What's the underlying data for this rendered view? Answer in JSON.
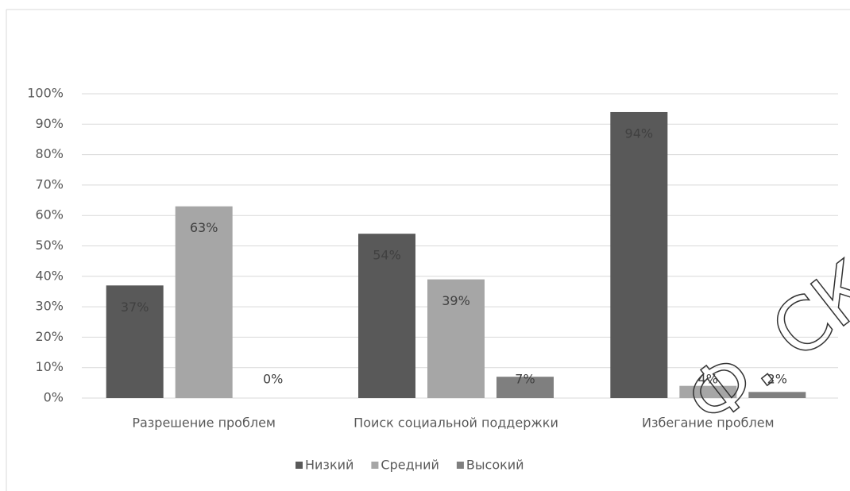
{
  "chart_data": {
    "type": "bar",
    "categories": [
      "Разрешение проблем",
      "Поиск социальной поддержки",
      "Избегание проблем"
    ],
    "series": [
      {
        "name": "Низкий",
        "color": "#595959",
        "values": [
          37,
          54,
          94
        ],
        "value_labels": [
          "37%",
          "54%",
          "94%"
        ]
      },
      {
        "name": "Средний",
        "color": "#a6a6a6",
        "values": [
          63,
          39,
          4
        ],
        "value_labels": [
          "63%",
          "39%",
          "4%"
        ]
      },
      {
        "name": "Высокий",
        "color": "#7f7f7f",
        "values": [
          0,
          7,
          2
        ],
        "value_labels": [
          "0%",
          "7%",
          "2%"
        ]
      }
    ],
    "ylim": [
      0,
      100
    ],
    "yticks": [
      {
        "value": 0,
        "label": "0%"
      },
      {
        "value": 10,
        "label": "10%"
      },
      {
        "value": 20,
        "label": "20%"
      },
      {
        "value": 30,
        "label": "30%"
      },
      {
        "value": 40,
        "label": "40%"
      },
      {
        "value": 50,
        "label": "50%"
      },
      {
        "value": 60,
        "label": "60%"
      },
      {
        "value": 70,
        "label": "70%"
      },
      {
        "value": 80,
        "label": "80%"
      },
      {
        "value": 90,
        "label": "90%"
      },
      {
        "value": 100,
        "label": "100%"
      }
    ],
    "grid": true,
    "legend": "bottom",
    "watermark": "Ф. СКОРИ"
  }
}
